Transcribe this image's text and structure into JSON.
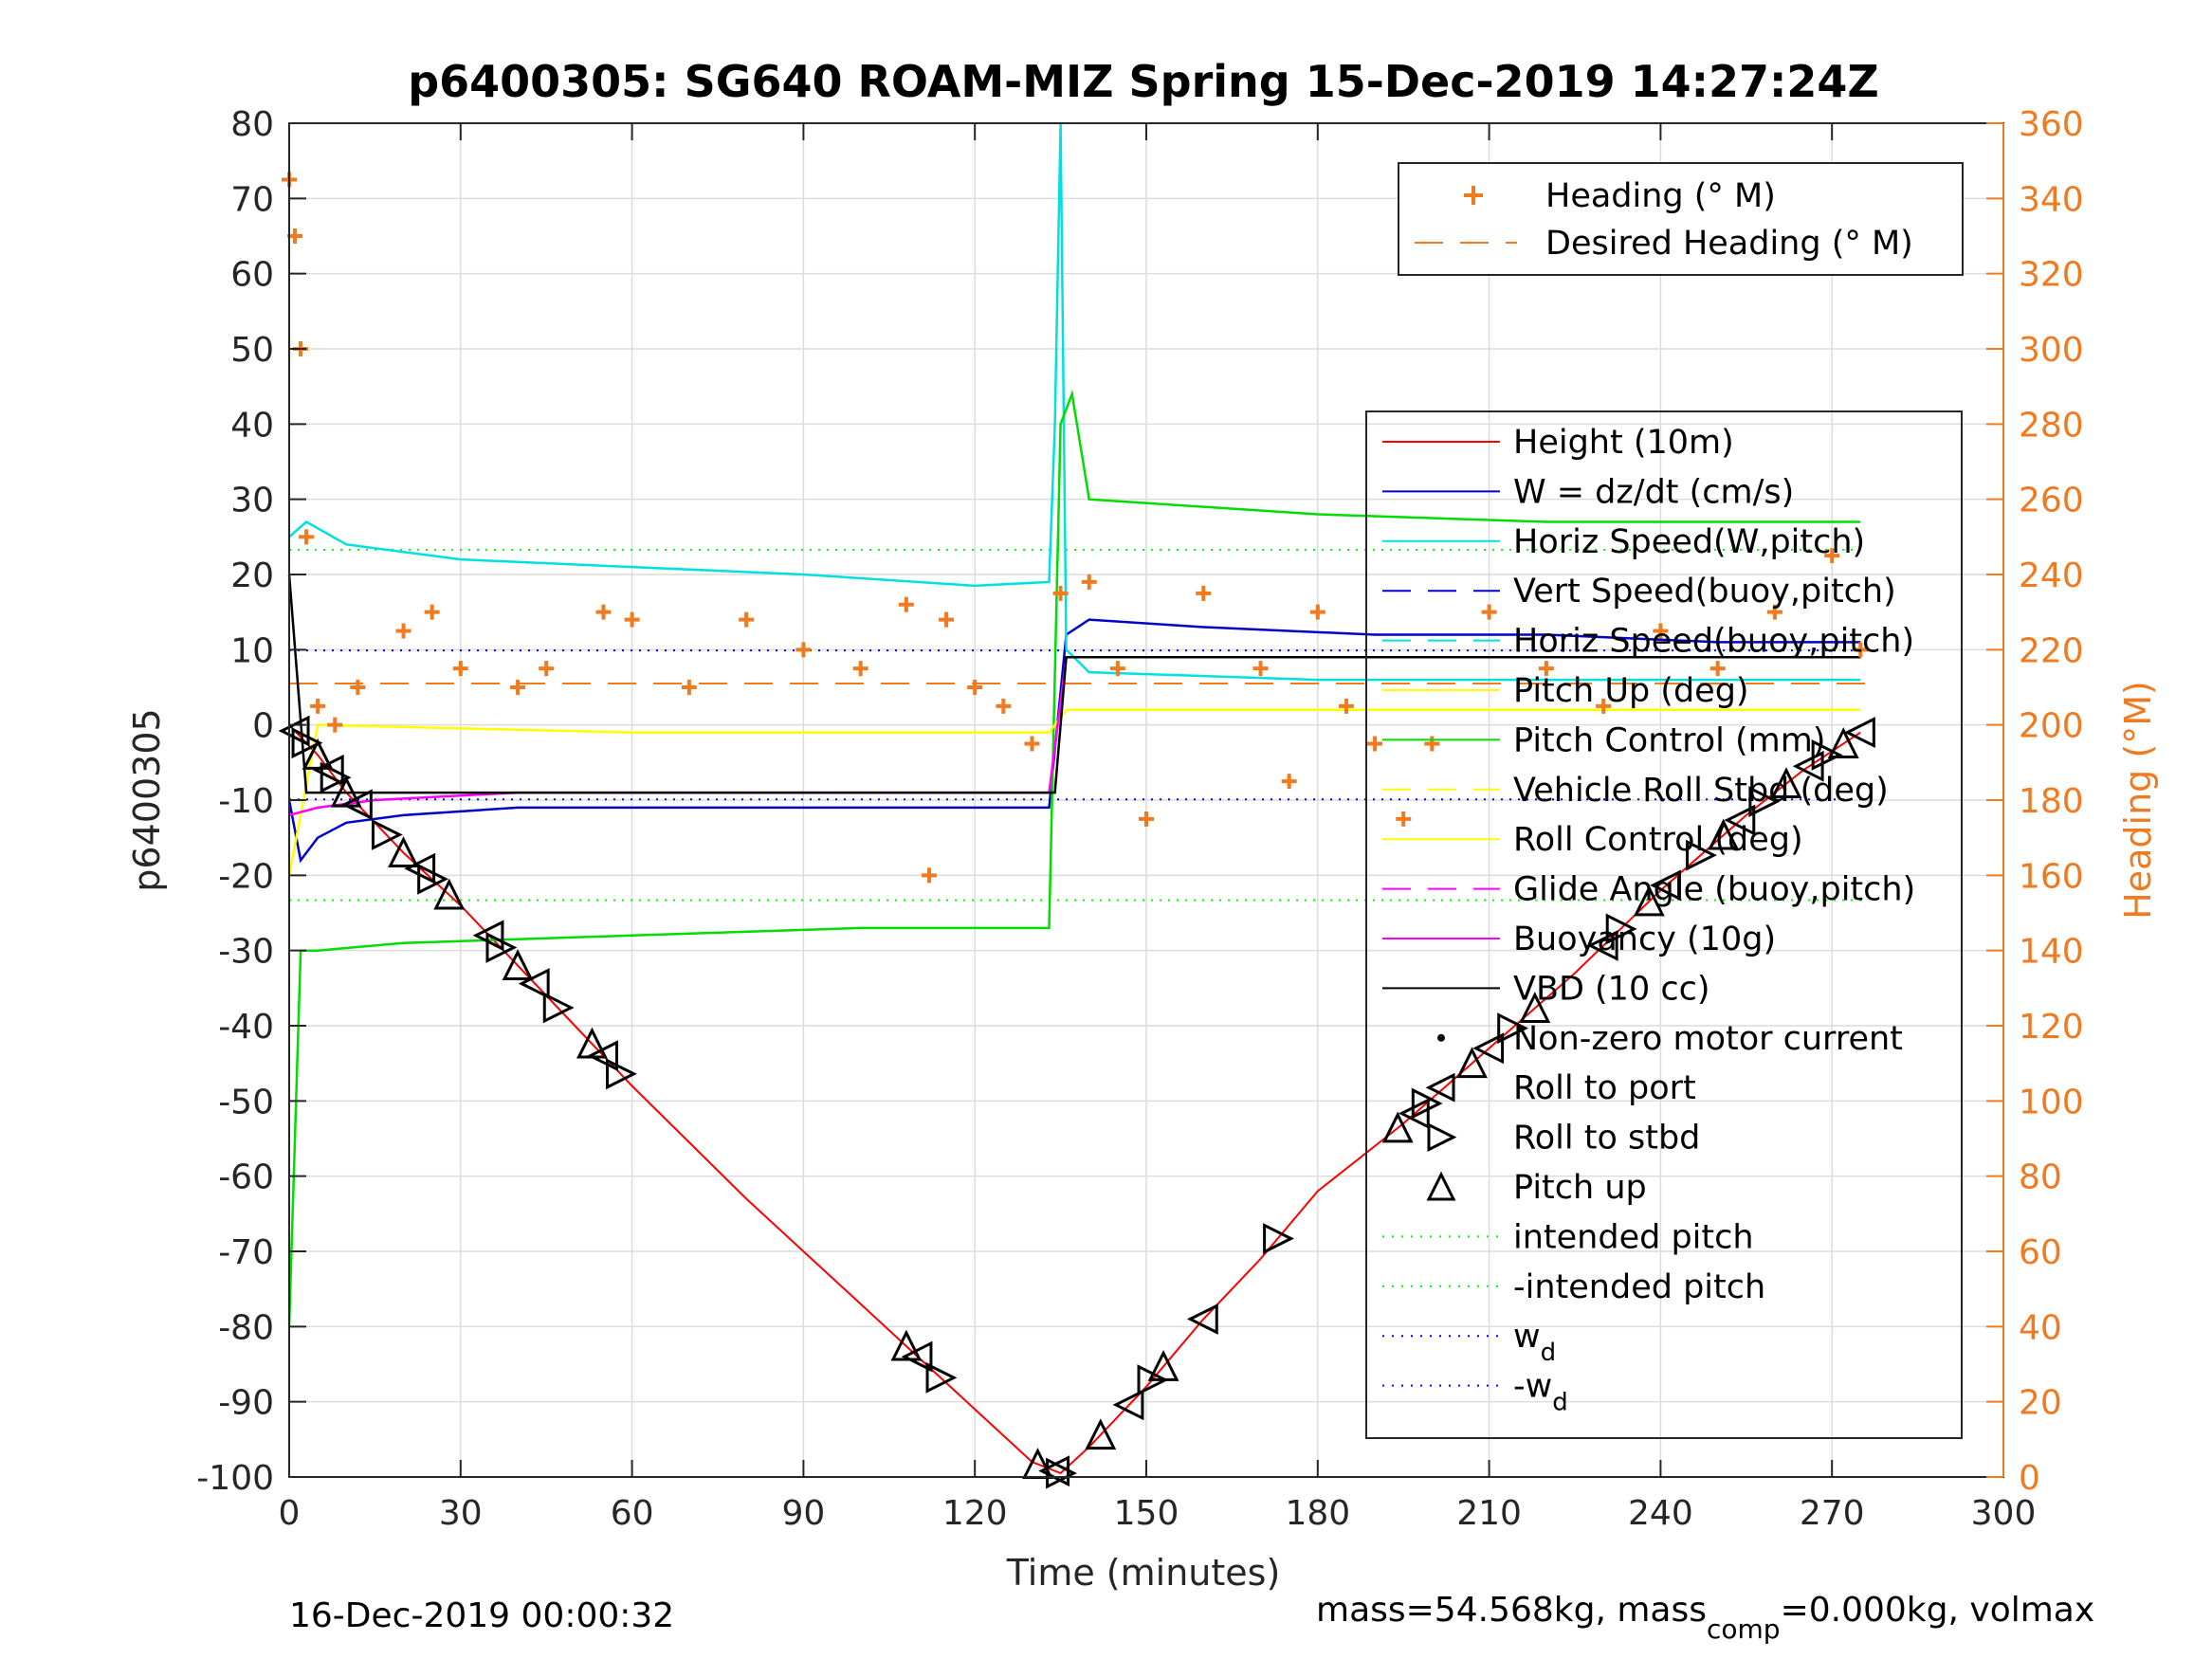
{
  "chart_data": {
    "type": "line",
    "title": "p6400305: SG640 ROAM-MIZ Spring 15-Dec-2019 14:27:24Z",
    "xlabel": "Time (minutes)",
    "ylabel": "p6400305",
    "ylabel_right": "Heading (°M)",
    "xlim": [
      0,
      300
    ],
    "ylim": [
      -100,
      80
    ],
    "ylim_right": [
      0,
      360
    ],
    "x_ticks": [
      0,
      30,
      60,
      90,
      120,
      150,
      180,
      210,
      240,
      270,
      300
    ],
    "y_ticks": [
      80,
      70,
      60,
      50,
      40,
      30,
      20,
      10,
      0,
      -10,
      -20,
      -30,
      -40,
      -50,
      -60,
      -70,
      -80,
      -90,
      -100
    ],
    "y_right_ticks": [
      360,
      340,
      320,
      300,
      280,
      260,
      240,
      220,
      200,
      180,
      160,
      140,
      120,
      100,
      80,
      60,
      40,
      20,
      0
    ],
    "grid": true,
    "legend_heading": {
      "placement": "top-right",
      "entries": [
        {
          "name": "Heading (° M)",
          "color": "#f07a20",
          "style": "plus"
        },
        {
          "name": "Desired Heading (° M)",
          "color": "#f07a20",
          "style": "dashed"
        }
      ]
    },
    "legend_main": {
      "placement": "right",
      "entries": [
        {
          "name": "Height (10m)",
          "color": "#ff0000",
          "style": "solid"
        },
        {
          "name": "W = dz/dt (cm/s)",
          "color": "#0000cc",
          "style": "solid"
        },
        {
          "name": "Horiz Speed(W,pitch)",
          "color": "#00e0e0",
          "style": "solid"
        },
        {
          "name": "Vert Speed(buoy,pitch)",
          "color": "#0000cc",
          "style": "dashed"
        },
        {
          "name": "Horiz Speed(buoy,pitch)",
          "color": "#00e0e0",
          "style": "dashed"
        },
        {
          "name": "Pitch Up (deg)",
          "color": "#ffff00",
          "style": "solid"
        },
        {
          "name": "Pitch Control (mm)",
          "color": "#00dd00",
          "style": "solid"
        },
        {
          "name": "Vehicle Roll Stbd (deg)",
          "color": "#ffff00",
          "style": "dashed"
        },
        {
          "name": "Roll Control (deg)",
          "color": "#ffff00",
          "style": "solid"
        },
        {
          "name": "Glide Angle (buoy,pitch)",
          "color": "#ff00ff",
          "style": "dashed"
        },
        {
          "name": "Buoyancy (10g)",
          "color": "#ff00ff",
          "style": "solid"
        },
        {
          "name": "VBD (10 cc)",
          "color": "#000000",
          "style": "solid"
        },
        {
          "name": "Non-zero motor current",
          "color": "#000000",
          "style": "dot"
        },
        {
          "name": "Roll to port",
          "color": "#000000",
          "style": "tri-left"
        },
        {
          "name": "Roll to stbd",
          "color": "#000000",
          "style": "tri-right"
        },
        {
          "name": "Pitch up",
          "color": "#000000",
          "style": "tri-up"
        },
        {
          "name": "intended pitch",
          "color": "#00ff00",
          "style": "dotted"
        },
        {
          "name": "-intended pitch",
          "color": "#00ff00",
          "style": "dotted"
        },
        {
          "name": "w",
          "sub": "d",
          "color": "#0000ff",
          "style": "dotted"
        },
        {
          "name": "-w",
          "sub": "d",
          "color": "#0000ff",
          "style": "dotted"
        }
      ]
    },
    "series": [
      {
        "name": "Height (10m)",
        "color": "#ff0000",
        "x": [
          0,
          5,
          10,
          20,
          30,
          40,
          50,
          60,
          80,
          100,
          110,
          120,
          130,
          135,
          140,
          150,
          160,
          170,
          180,
          195,
          210,
          225,
          240,
          255,
          265,
          275
        ],
        "y": [
          0,
          -4,
          -9,
          -17,
          -24,
          -32,
          -40,
          -48,
          -63,
          -77,
          -84,
          -91,
          -98,
          -99.5,
          -96,
          -88,
          -79,
          -71,
          -62,
          -53,
          -43,
          -33,
          -22,
          -12,
          -6,
          -1
        ]
      },
      {
        "name": "W = dz/dt (cm/s)",
        "color": "#0000cc",
        "x": [
          0,
          2,
          5,
          10,
          20,
          40,
          60,
          90,
          120,
          133,
          136,
          140,
          160,
          190,
          220,
          250,
          275
        ],
        "y": [
          -10,
          -18,
          -15,
          -13,
          -12,
          -11,
          -11,
          -11,
          -11,
          -11,
          12,
          14,
          13,
          12,
          12,
          11,
          11
        ]
      },
      {
        "name": "Horiz Speed(W,pitch)",
        "color": "#00e0e0",
        "x": [
          0,
          3,
          10,
          30,
          60,
          90,
          120,
          133,
          134,
          135,
          136,
          140,
          180,
          220,
          275
        ],
        "y": [
          25,
          27,
          24,
          22,
          21,
          20,
          18.5,
          19,
          40,
          80,
          10,
          7,
          6,
          6,
          6
        ]
      },
      {
        "name": "Pitch Control (mm)",
        "color": "#00dd00",
        "x": [
          0,
          2,
          5,
          20,
          60,
          100,
          133,
          135,
          137,
          140,
          180,
          220,
          260,
          275
        ],
        "y": [
          -80,
          -30,
          -30,
          -29,
          -28,
          -27,
          -27,
          40,
          44,
          30,
          28,
          27,
          27,
          27
        ]
      },
      {
        "name": "Pitch Up (deg)",
        "color": "#ffff00",
        "x": [
          0,
          5,
          60,
          120,
          133,
          136,
          200,
          275
        ],
        "y": [
          -20,
          0,
          -1,
          -1,
          -1,
          2,
          2,
          2
        ]
      },
      {
        "name": "Buoyancy (10g)",
        "color": "#ff00ff",
        "x": [
          0,
          5,
          15,
          40,
          80,
          120,
          133,
          136,
          275
        ],
        "y": [
          -12,
          -11,
          -10,
          -9,
          -9,
          -9,
          -9,
          9,
          9
        ]
      },
      {
        "name": "VBD (10 cc)",
        "color": "#000000",
        "x": [
          0,
          3,
          10,
          60,
          120,
          134,
          136,
          200,
          275
        ],
        "y": [
          20,
          -9,
          -9,
          -9,
          -9,
          -9,
          9,
          9,
          9
        ]
      },
      {
        "name": "Heading (° M)",
        "color": "#f07a20",
        "axis": "right",
        "x": [
          0,
          1,
          2,
          3,
          5,
          8,
          12,
          20,
          25,
          30,
          40,
          45,
          55,
          60,
          70,
          80,
          90,
          100,
          108,
          112,
          115,
          120,
          125,
          130,
          135,
          140,
          145,
          150,
          160,
          170,
          175,
          180,
          185,
          190,
          195,
          200,
          210,
          220,
          230,
          240,
          250,
          260,
          270,
          275
        ],
        "y": [
          345,
          330,
          300,
          250,
          205,
          200,
          210,
          225,
          230,
          215,
          210,
          215,
          230,
          228,
          210,
          228,
          220,
          215,
          232,
          160,
          228,
          210,
          205,
          195,
          235,
          238,
          215,
          175,
          235,
          215,
          185,
          230,
          205,
          195,
          175,
          195,
          230,
          215,
          205,
          225,
          215,
          230,
          245,
          220
        ]
      }
    ],
    "desired_heading": 211,
    "intended_pitch": 23.3,
    "w_d": 9.9,
    "annotation_mass": "mass=54.568kg, mass",
    "annotation_mass_sub": "comp",
    "annotation_mass_tail": "=0.000kg, volmax",
    "annotation_date": "16-Dec-2019 00:00:32"
  }
}
